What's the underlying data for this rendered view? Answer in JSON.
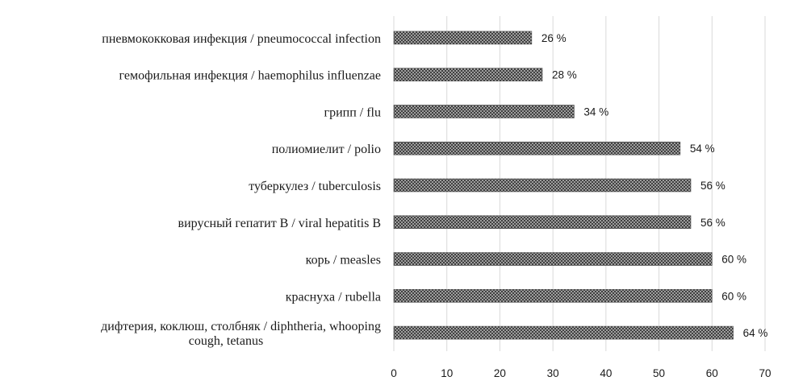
{
  "chart_data": {
    "type": "bar",
    "orientation": "horizontal",
    "categories": [
      "пневмококковая инфекция / pneumococcal infection",
      "гемофильная инфекция / haemophilus influenzae",
      "грипп / flu",
      "полиомиелит / polio",
      "туберкулез / tuberculosis",
      "вирусный гепатит В / viral hepatitis B",
      "корь / measles",
      "краснуха / rubella",
      "дифтерия, коклюш, столбняк / diphtheria, whooping cough, tetanus"
    ],
    "category_lines": [
      [
        "пневмококковая инфекция / pneumococcal infection"
      ],
      [
        "гемофильная инфекция / haemophilus influenzae"
      ],
      [
        "грипп / flu"
      ],
      [
        "полиомиелит / polio"
      ],
      [
        "туберкулез / tuberculosis"
      ],
      [
        "вирусный гепатит В / viral hepatitis B"
      ],
      [
        "корь / measles"
      ],
      [
        "краснуха / rubella"
      ],
      [
        "дифтерия, коклюш, столбняк / diphtheria, whooping",
        "cough, tetanus"
      ]
    ],
    "values": [
      26,
      28,
      34,
      54,
      56,
      56,
      60,
      60,
      64
    ],
    "value_labels": [
      "26 %",
      "28 %",
      "34 %",
      "54 %",
      "56 %",
      "56 %",
      "60 %",
      "60 %",
      "64 %"
    ],
    "xticks": [
      "0",
      "10",
      "20",
      "30",
      "40",
      "50",
      "60",
      "70"
    ],
    "xlim": [
      0,
      70
    ],
    "title": "",
    "xlabel": "",
    "ylabel": "",
    "grid": "vertical",
    "legend": "none",
    "bar_fill": "crosshatch",
    "colors": {
      "bar_dark": "#3d3d3d",
      "bar_light": "#d6d6d6",
      "grid": "#d9d9d9",
      "text": "#1a1a1a"
    }
  }
}
